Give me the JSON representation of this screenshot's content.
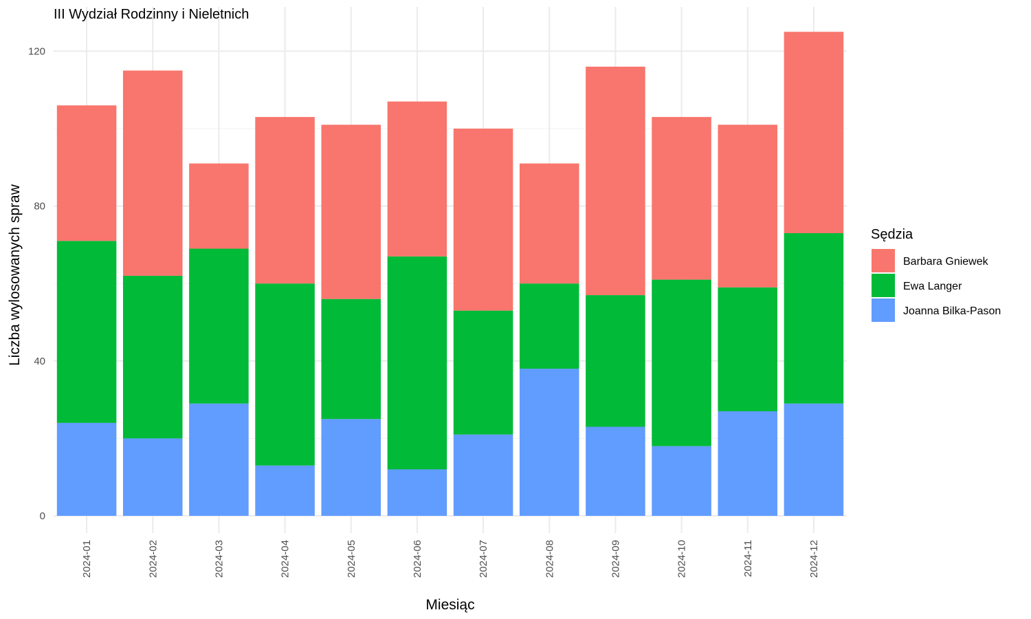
{
  "chart_data": {
    "type": "bar",
    "stacked": true,
    "title": "III Wydział Rodzinny i Nieletnich",
    "xlabel": "Miesiąc",
    "ylabel": "Liczba wylosowanych spraw",
    "ylim": [
      0,
      125
    ],
    "yticks": [
      0,
      40,
      80,
      120
    ],
    "grid": true,
    "legend_title": "Sędzia",
    "legend_position": "right",
    "categories": [
      "2024-01",
      "2024-02",
      "2024-03",
      "2024-04",
      "2024-05",
      "2024-06",
      "2024-07",
      "2024-08",
      "2024-09",
      "2024-10",
      "2024-11",
      "2024-12"
    ],
    "series": [
      {
        "name": "Barbara Gniewek",
        "color": "#F8766D",
        "values": [
          35,
          53,
          22,
          43,
          45,
          40,
          47,
          31,
          59,
          42,
          42,
          52
        ]
      },
      {
        "name": "Ewa Langer",
        "color": "#00BA38",
        "values": [
          47,
          42,
          40,
          47,
          31,
          55,
          32,
          22,
          34,
          43,
          32,
          44
        ]
      },
      {
        "name": "Joanna Bilka-Pason",
        "color": "#619CFF",
        "values": [
          24,
          20,
          29,
          13,
          25,
          12,
          21,
          38,
          23,
          18,
          27,
          29
        ]
      }
    ],
    "stack_order": [
      "Joanna Bilka-Pason",
      "Ewa Langer",
      "Barbara Gniewek"
    ]
  }
}
